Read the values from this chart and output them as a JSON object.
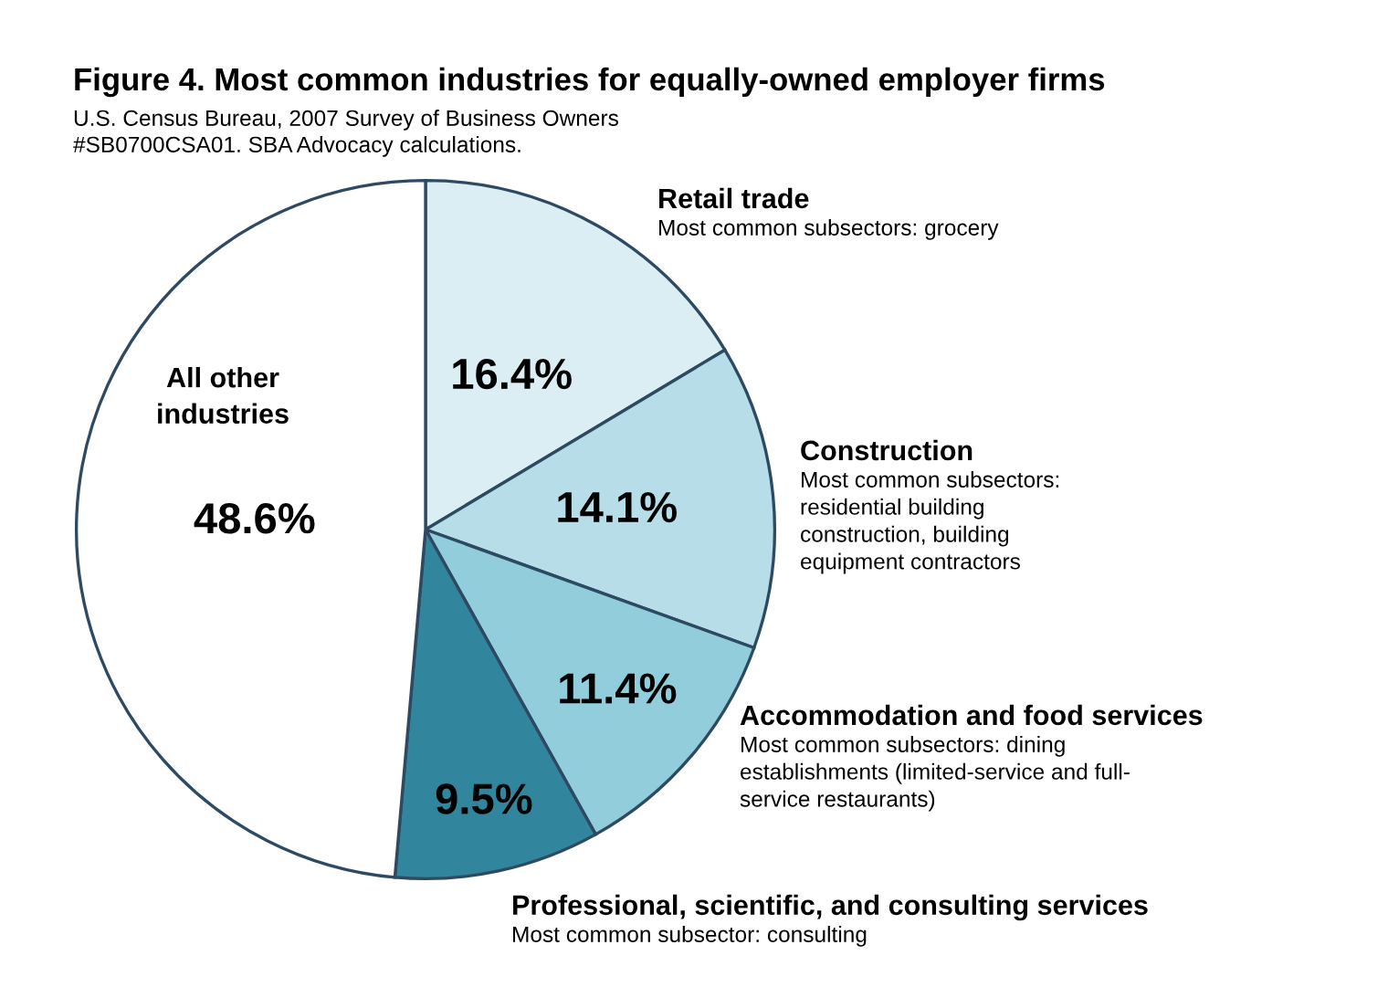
{
  "chart_data": {
    "type": "pie",
    "title": "Figure 4. Most common industries for equally-owned employer firms",
    "subtitle": "U.S. Census Bureau, 2007 Survey of Business Owners\n#SB0700CSA01. SBA Advocacy calculations.",
    "categories": [
      "Retail trade",
      "Construction",
      "Accommodation and food services",
      "Professional, scientific, and consulting services",
      "All other\nindustries"
    ],
    "values": [
      16.4,
      14.1,
      11.4,
      9.5,
      48.6
    ],
    "value_labels": [
      "16.4%",
      "14.1%",
      "11.4%",
      "9.5%",
      "48.6%"
    ],
    "colors": [
      "#dbeef4",
      "#b7dde8",
      "#92cddc",
      "#31859c",
      "#ffffff"
    ],
    "annotations": [
      "Most common subsectors: grocery",
      "Most common subsectors:\nresidential building\nconstruction, building\nequipment contractors",
      "Most common subsectors: dining\nestablishments (limited-service and full-\nservice restaurants)",
      "Most common subsector: consulting"
    ]
  }
}
